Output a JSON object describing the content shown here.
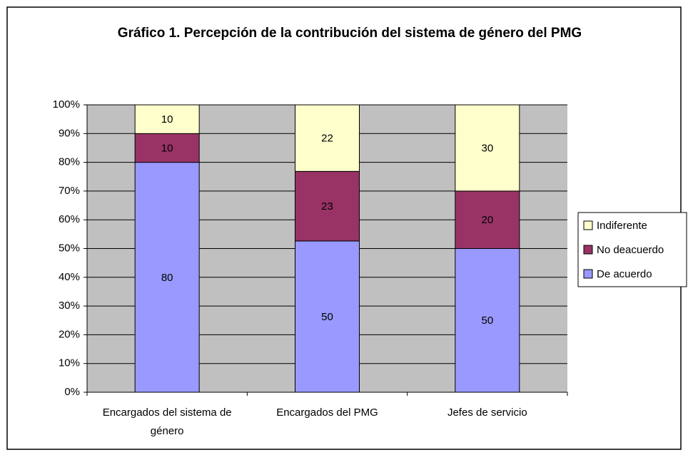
{
  "chart_data": {
    "type": "bar",
    "stacking": "percent",
    "title": "Gráfico 1. Percepción de la contribución del sistema de género del PMG",
    "categories": [
      "Encargados del sistema de género",
      "Encargados del PMG",
      "Jefes de servicio"
    ],
    "series": [
      {
        "name": "De acuerdo",
        "color": "#9999ff",
        "values": [
          80,
          50,
          50
        ]
      },
      {
        "name": "No deacuerdo",
        "color": "#993366",
        "values": [
          10,
          23,
          20
        ]
      },
      {
        "name": "Indiferente",
        "color": "#ffffcc",
        "values": [
          10,
          22,
          30
        ]
      }
    ],
    "ylim": [
      0,
      100
    ],
    "yticks": [
      {
        "value": 0,
        "label": "0%"
      },
      {
        "value": 10,
        "label": "10%"
      },
      {
        "value": 20,
        "label": "20%"
      },
      {
        "value": 30,
        "label": "30%"
      },
      {
        "value": 40,
        "label": "40%"
      },
      {
        "value": 50,
        "label": "50%"
      },
      {
        "value": 60,
        "label": "60%"
      },
      {
        "value": 70,
        "label": "70%"
      },
      {
        "value": 80,
        "label": "80%"
      },
      {
        "value": 90,
        "label": "90%"
      },
      {
        "value": 100,
        "label": "100%"
      }
    ],
    "grid": true,
    "legend": "right"
  }
}
